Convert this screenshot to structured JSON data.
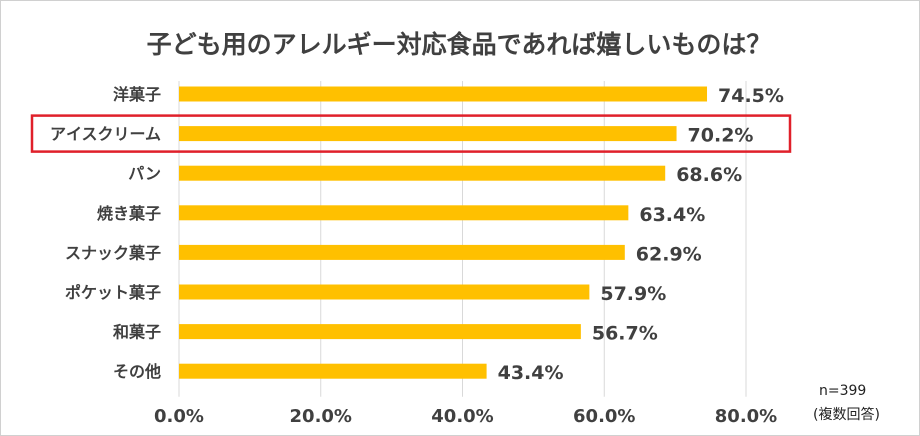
{
  "chart_data": {
    "type": "bar",
    "orientation": "horizontal",
    "title": "子ども用のアレルギー対応食品であれば嬉しいものは？",
    "categories": [
      "洋菓子",
      "アイスクリーム",
      "パン",
      "焼き菓子",
      "スナック菓子",
      "ポケット菓子",
      "和菓子",
      "その他"
    ],
    "values": [
      74.5,
      70.2,
      68.6,
      63.4,
      62.9,
      57.9,
      56.7,
      43.4
    ],
    "value_labels": [
      "74.5%",
      "70.2%",
      "68.6%",
      "63.4%",
      "62.9%",
      "57.9%",
      "56.7%",
      "43.4%"
    ],
    "xlim": [
      0,
      80
    ],
    "x_ticks": [
      "0.0%",
      "20.0%",
      "40.0%",
      "60.0%",
      "80.0%"
    ],
    "xlabel": "",
    "ylabel": "",
    "grid": true,
    "highlighted_category": "アイスクリーム",
    "colors": {
      "bar": "#FFC000",
      "highlight_box": "#E0202A",
      "grid": "#D9D9D9"
    }
  },
  "notes": {
    "sample_size": "n=399",
    "answer_type": "(複数回答)"
  }
}
